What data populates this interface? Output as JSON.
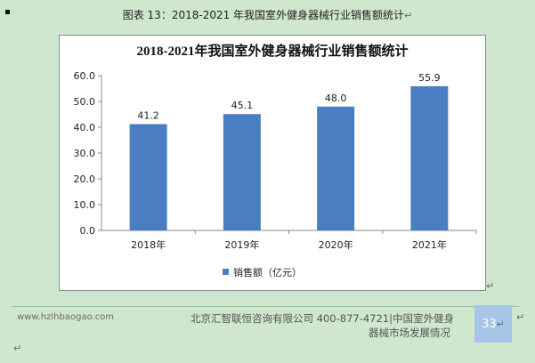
{
  "caption": {
    "text": "图表  13：2018-2021 年我国室外健身器械行业销售额统计",
    "mark": "↵"
  },
  "chart_data": {
    "type": "bar",
    "title": "2018-2021年我国室外健身器械行业销售额统计",
    "categories": [
      "2018年",
      "2019年",
      "2020年",
      "2021年"
    ],
    "series": [
      {
        "name": "销售额（亿元）",
        "values": [
          41.2,
          45.1,
          48.0,
          55.9
        ],
        "color": "#4a7ec3"
      }
    ],
    "data_labels": [
      "41.2",
      "45.1",
      "48.0",
      "55.9"
    ],
    "y_ticks": [
      "0.0",
      "10.0",
      "20.0",
      "30.0",
      "40.0",
      "50.0",
      "60.0"
    ],
    "ylim": [
      0,
      60
    ],
    "grid": false,
    "legend": "bottom"
  },
  "footer": {
    "website": "www.hzlhbaogao.com",
    "company_line1": "北京汇智联恒咨询有限公司  400-877-4721|中国室外健身",
    "company_line2": "器械市场发展情况",
    "page_number": "33",
    "mark": "↵"
  }
}
